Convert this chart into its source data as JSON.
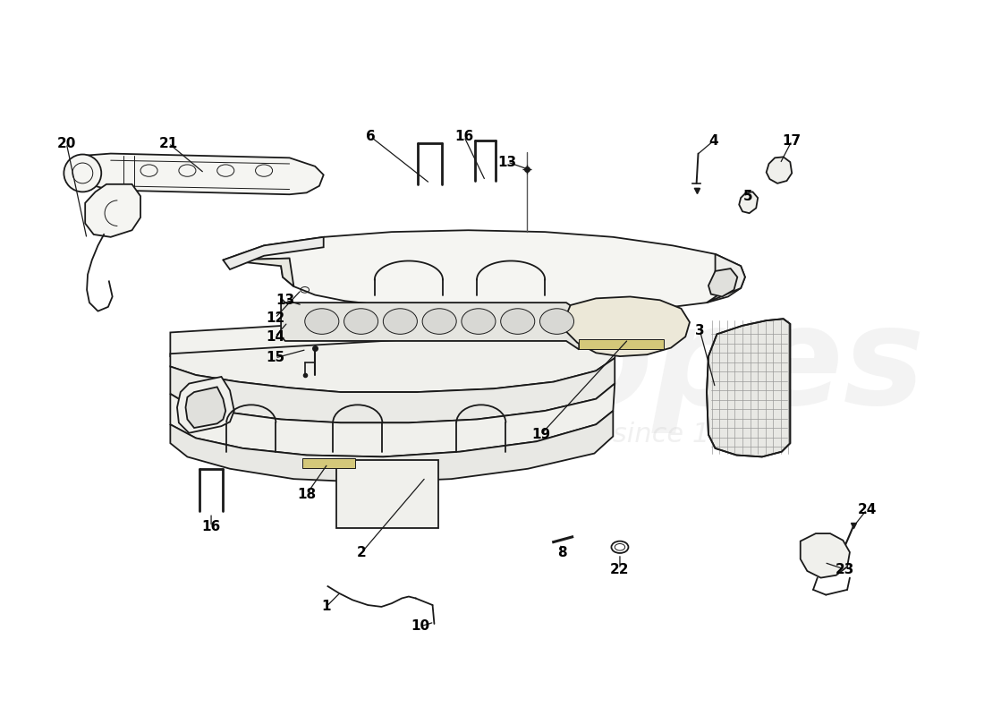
{
  "bg_color": "#ffffff",
  "line_color": "#1a1a1a",
  "label_color": "#000000",
  "wm_color": "#cccccc",
  "pad_fill": "#f5f5f2",
  "body_fill": "#f0f0ec",
  "grill_fill": "#e8e8e4",
  "yellow": "#d4c87a",
  "lw": 1.3,
  "lw_thin": 0.7
}
